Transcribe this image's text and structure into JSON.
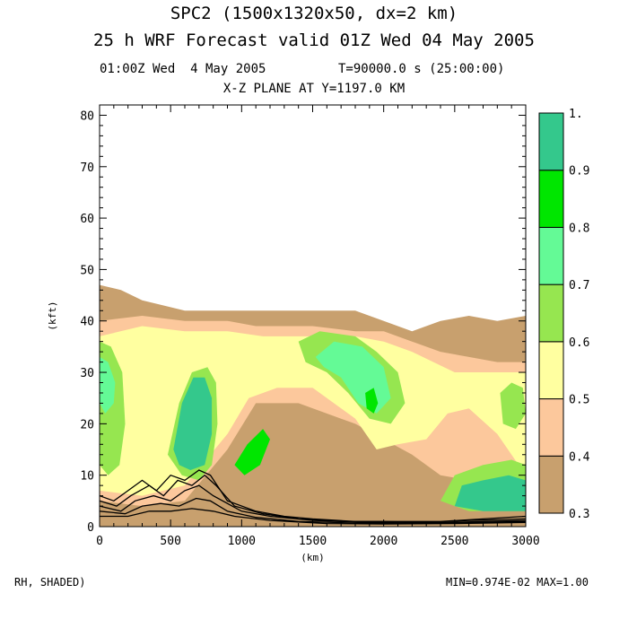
{
  "header": {
    "line1": "SPC2 (1500x1320x50, dx=2 km)",
    "line2": "25 h WRF Forecast valid 01Z Wed 04 May 2005",
    "time_label": "01:00Z Wed  4 May 2005",
    "t_label": "T=90000.0 s (25:00:00)",
    "plane_label": "X-Z PLANE AT Y=1197.0 KM"
  },
  "footer": {
    "left": "RH, SHADED)",
    "right": "MIN=0.974E-02 MAX=1.00"
  },
  "chart_data": {
    "type": "heatmap",
    "title": "X-Z PLANE AT Y=1197.0 KM",
    "xlabel": "(km)",
    "ylabel": "(kft)",
    "xlim": [
      0,
      3000
    ],
    "ylim": [
      0,
      82
    ],
    "x_ticks": [
      0,
      500,
      1000,
      1500,
      2000,
      2500,
      3000
    ],
    "y_ticks": [
      0,
      10,
      20,
      30,
      40,
      50,
      60,
      70,
      80
    ],
    "colorbar": {
      "levels": [
        0.3,
        0.4,
        0.5,
        0.6,
        0.7,
        0.8,
        0.9,
        1.0
      ],
      "tick_labels": [
        "0.3",
        "0.4",
        "0.5",
        "0.6",
        "0.7",
        "0.8",
        "0.9",
        "1."
      ],
      "colors": [
        "#c8a06e",
        "#fcc89c",
        "#ffffa0",
        "#96e650",
        "#64fa96",
        "#00e600",
        "#34c88c"
      ]
    },
    "shaded_regions": [
      {
        "name": "upper-dry-layer",
        "level": 0.3,
        "points": [
          [
            0,
            47
          ],
          [
            150,
            46
          ],
          [
            300,
            44
          ],
          [
            450,
            43
          ],
          [
            600,
            42
          ],
          [
            800,
            42
          ],
          [
            1000,
            42
          ],
          [
            1200,
            42
          ],
          [
            1400,
            42
          ],
          [
            1600,
            42
          ],
          [
            1800,
            42
          ],
          [
            2000,
            40
          ],
          [
            2200,
            38
          ],
          [
            2400,
            40
          ],
          [
            2600,
            41
          ],
          [
            2800,
            40
          ],
          [
            3000,
            41
          ],
          [
            3000,
            0
          ],
          [
            0,
            0
          ]
        ]
      },
      {
        "name": "moist-band",
        "level": 0.4,
        "points": [
          [
            0,
            40
          ],
          [
            300,
            41
          ],
          [
            600,
            40
          ],
          [
            900,
            40
          ],
          [
            1100,
            39
          ],
          [
            1500,
            39
          ],
          [
            1800,
            38
          ],
          [
            2000,
            38
          ],
          [
            2200,
            36
          ],
          [
            2400,
            34
          ],
          [
            2600,
            33
          ],
          [
            2800,
            32
          ],
          [
            3000,
            32
          ],
          [
            3000,
            4
          ],
          [
            2600,
            9
          ],
          [
            2400,
            10
          ],
          [
            2200,
            14
          ],
          [
            1800,
            20
          ],
          [
            1400,
            24
          ],
          [
            1100,
            24
          ],
          [
            900,
            15
          ],
          [
            600,
            5
          ],
          [
            300,
            4
          ],
          [
            0,
            5
          ]
        ]
      },
      {
        "name": "moist-band-inner",
        "level": 0.5,
        "points": [
          [
            0,
            37
          ],
          [
            300,
            39
          ],
          [
            600,
            38
          ],
          [
            900,
            38
          ],
          [
            1150,
            37
          ],
          [
            1500,
            37
          ],
          [
            1800,
            37
          ],
          [
            2000,
            36
          ],
          [
            2200,
            34
          ],
          [
            2500,
            30
          ],
          [
            2800,
            30
          ],
          [
            3000,
            30
          ],
          [
            3000,
            10
          ],
          [
            2800,
            18
          ],
          [
            2600,
            23
          ],
          [
            2450,
            22
          ],
          [
            2300,
            17
          ],
          [
            2100,
            16
          ],
          [
            1950,
            15
          ],
          [
            1800,
            21
          ],
          [
            1500,
            27
          ],
          [
            1250,
            27
          ],
          [
            1050,
            25
          ],
          [
            900,
            18
          ],
          [
            600,
            8
          ],
          [
            300,
            6
          ],
          [
            0,
            7
          ]
        ]
      },
      {
        "name": "left-green-lobe",
        "level": 0.6,
        "points": [
          [
            0,
            36
          ],
          [
            80,
            35
          ],
          [
            160,
            30
          ],
          [
            180,
            20
          ],
          [
            140,
            12
          ],
          [
            60,
            10
          ],
          [
            0,
            12
          ]
        ]
      },
      {
        "name": "left-core",
        "level": 0.7,
        "points": [
          [
            0,
            33
          ],
          [
            60,
            32
          ],
          [
            110,
            28
          ],
          [
            100,
            24
          ],
          [
            40,
            22
          ],
          [
            0,
            24
          ]
        ]
      },
      {
        "name": "left-column",
        "level": 0.6,
        "points": [
          [
            480,
            14
          ],
          [
            560,
            24
          ],
          [
            650,
            30
          ],
          [
            760,
            31
          ],
          [
            820,
            28
          ],
          [
            830,
            20
          ],
          [
            790,
            12
          ],
          [
            700,
            9
          ],
          [
            580,
            10
          ]
        ]
      },
      {
        "name": "left-column-core",
        "level": 0.9,
        "points": [
          [
            520,
            15
          ],
          [
            580,
            24
          ],
          [
            660,
            29
          ],
          [
            740,
            29
          ],
          [
            790,
            25
          ],
          [
            790,
            18
          ],
          [
            740,
            12
          ],
          [
            640,
            11
          ],
          [
            560,
            12
          ]
        ]
      },
      {
        "name": "central-moist",
        "level": 0.6,
        "points": [
          [
            1400,
            36
          ],
          [
            1550,
            38
          ],
          [
            1800,
            37
          ],
          [
            1950,
            34
          ],
          [
            2100,
            30
          ],
          [
            2150,
            24
          ],
          [
            2050,
            20
          ],
          [
            1900,
            21
          ],
          [
            1750,
            26
          ],
          [
            1600,
            30
          ],
          [
            1450,
            32
          ]
        ]
      },
      {
        "name": "central-core",
        "level": 0.7,
        "points": [
          [
            1520,
            33
          ],
          [
            1650,
            36
          ],
          [
            1850,
            35
          ],
          [
            2000,
            31
          ],
          [
            2050,
            25
          ],
          [
            1950,
            22
          ],
          [
            1820,
            24
          ],
          [
            1700,
            29
          ],
          [
            1580,
            31
          ]
        ]
      },
      {
        "name": "central-blob",
        "level": 0.8,
        "points": [
          [
            1870,
            26
          ],
          [
            1930,
            27
          ],
          [
            1960,
            24
          ],
          [
            1930,
            22
          ],
          [
            1880,
            23
          ]
        ]
      },
      {
        "name": "mid-streak",
        "level": 0.8,
        "points": [
          [
            950,
            12
          ],
          [
            1040,
            16
          ],
          [
            1150,
            19
          ],
          [
            1200,
            17
          ],
          [
            1130,
            12
          ],
          [
            1020,
            10
          ]
        ]
      },
      {
        "name": "right-green",
        "level": 0.6,
        "points": [
          [
            2500,
            10
          ],
          [
            2700,
            12
          ],
          [
            2900,
            13
          ],
          [
            3000,
            12
          ],
          [
            3000,
            3
          ],
          [
            2600,
            3
          ],
          [
            2400,
            5
          ]
        ]
      },
      {
        "name": "right-core",
        "level": 0.9,
        "points": [
          [
            2550,
            8
          ],
          [
            2700,
            9
          ],
          [
            2880,
            10
          ],
          [
            3000,
            9
          ],
          [
            3000,
            3
          ],
          [
            2700,
            3
          ],
          [
            2500,
            4
          ]
        ]
      },
      {
        "name": "far-right-cell",
        "level": 0.6,
        "points": [
          [
            2820,
            26
          ],
          [
            2900,
            28
          ],
          [
            2980,
            27
          ],
          [
            3000,
            22
          ],
          [
            2930,
            19
          ],
          [
            2840,
            20
          ]
        ]
      }
    ],
    "contour_lines": [
      {
        "name": "contour-1",
        "points": [
          [
            0,
            6
          ],
          [
            100,
            5
          ],
          [
            200,
            7
          ],
          [
            300,
            9
          ],
          [
            400,
            7
          ],
          [
            500,
            10
          ],
          [
            600,
            9
          ],
          [
            700,
            11
          ],
          [
            780,
            10
          ],
          [
            900,
            5
          ],
          [
            1100,
            3
          ],
          [
            1300,
            2
          ],
          [
            1500,
            1.5
          ],
          [
            1800,
            1
          ],
          [
            2100,
            1
          ],
          [
            2400,
            1
          ],
          [
            2700,
            1.5
          ],
          [
            3000,
            2
          ]
        ]
      },
      {
        "name": "contour-2",
        "points": [
          [
            0,
            5
          ],
          [
            120,
            4
          ],
          [
            220,
            6
          ],
          [
            350,
            8
          ],
          [
            450,
            6
          ],
          [
            550,
            9
          ],
          [
            650,
            8
          ],
          [
            740,
            10
          ],
          [
            820,
            8
          ],
          [
            950,
            4
          ],
          [
            1150,
            2.5
          ],
          [
            1400,
            1.5
          ],
          [
            1700,
            1
          ],
          [
            2000,
            1
          ],
          [
            2300,
            0.8
          ],
          [
            2600,
            1.2
          ],
          [
            3000,
            1.5
          ]
        ]
      },
      {
        "name": "contour-3",
        "points": [
          [
            0,
            4
          ],
          [
            150,
            3
          ],
          [
            250,
            5
          ],
          [
            380,
            6
          ],
          [
            500,
            5
          ],
          [
            600,
            7
          ],
          [
            700,
            8
          ],
          [
            800,
            6
          ],
          [
            1000,
            3
          ],
          [
            1200,
            2
          ],
          [
            1500,
            1.2
          ],
          [
            1900,
            0.8
          ],
          [
            2300,
            0.7
          ],
          [
            2700,
            1
          ],
          [
            3000,
            1.2
          ]
        ]
      },
      {
        "name": "contour-4",
        "points": [
          [
            0,
            3
          ],
          [
            180,
            2.5
          ],
          [
            300,
            4
          ],
          [
            430,
            4.5
          ],
          [
            560,
            4
          ],
          [
            680,
            5.5
          ],
          [
            780,
            5
          ],
          [
            900,
            3
          ],
          [
            1100,
            1.8
          ],
          [
            1400,
            1
          ],
          [
            1800,
            0.7
          ],
          [
            2200,
            0.6
          ],
          [
            2600,
            0.8
          ],
          [
            3000,
            1
          ]
        ]
      },
      {
        "name": "contour-5",
        "points": [
          [
            0,
            2
          ],
          [
            200,
            2
          ],
          [
            350,
            3
          ],
          [
            500,
            3
          ],
          [
            650,
            3.5
          ],
          [
            800,
            3
          ],
          [
            950,
            2
          ],
          [
            1200,
            1.2
          ],
          [
            1600,
            0.6
          ],
          [
            2000,
            0.5
          ],
          [
            2500,
            0.6
          ],
          [
            3000,
            0.8
          ]
        ]
      }
    ]
  }
}
